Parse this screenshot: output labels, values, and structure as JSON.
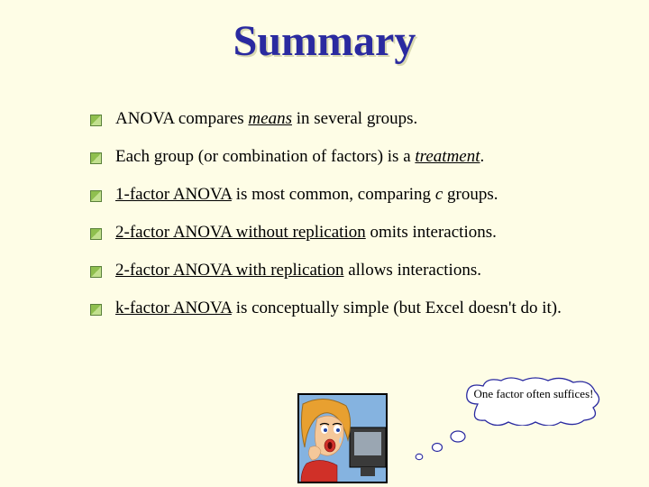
{
  "title": "Summary",
  "title_color": "#2a2aa0",
  "title_fontsize": 48,
  "background_color": "#fefde6",
  "bullet_marker": {
    "fill1": "#8fbf4f",
    "fill2": "#c2e08f",
    "border": "#5a803a",
    "size": 11
  },
  "bullets": [
    {
      "pre": "ANOVA compares ",
      "em": "means",
      "em_style": "u-ital",
      "post": " in several groups."
    },
    {
      "pre": "Each group (or combination of factors) is a ",
      "em": "treatment",
      "em_style": "u-ital",
      "post": "."
    },
    {
      "pre": "",
      "em": "1-factor ANOVA",
      "em_style": "u-only",
      "post_html": " is most common, comparing <span class='ital'>c</span> groups."
    },
    {
      "pre": "",
      "em": "2-factor ANOVA without replication",
      "em_style": "u-only",
      "post": " omits interactions."
    },
    {
      "pre": "",
      "em": "2-factor ANOVA with replication",
      "em_style": "u-only",
      "post": " allows interactions."
    },
    {
      "pre": "",
      "em": "k-factor ANOVA",
      "em_style": "u-only",
      "post": " is conceptually simple (but Excel doesn't do it)."
    }
  ],
  "callout_text": "One factor often suffices!",
  "cloud_stroke": "#2a2aa0",
  "cloud_fill": "#ffffff",
  "illustration": {
    "frame_fill": "#85b3e0",
    "frame_border": "#000000",
    "hair": "#e8a030",
    "skin": "#f5c89a",
    "lips": "#d03028",
    "monitor": "#3a3a3a",
    "screen": "#9aa6b2"
  }
}
